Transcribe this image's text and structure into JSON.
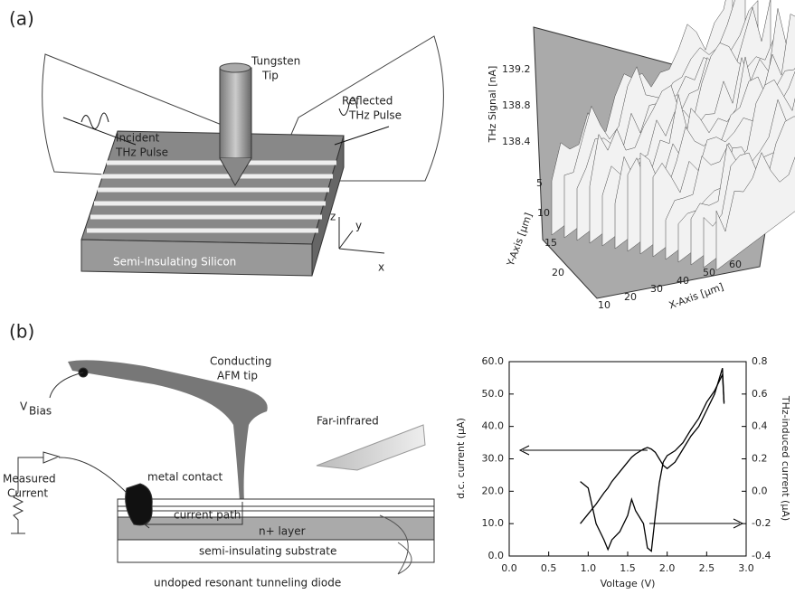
{
  "panel_a": {
    "label": "(a)",
    "diagram": {
      "tip": [
        "Tungsten",
        "Tip"
      ],
      "incident": [
        "Incident",
        "THz Pulse"
      ],
      "reflected": [
        "Reflected",
        "THz Pulse"
      ],
      "substrate": "Semi-Insulating Silicon",
      "axes": [
        "z",
        "y",
        "x"
      ]
    },
    "surface_plot": {
      "z_label": "THz Signal [nA]",
      "y_label": "Y-Axis [μm]",
      "x_label": "X-Axis [μm]",
      "z_ticks": [
        138.4,
        138.8,
        139.2
      ],
      "y_ticks": [
        5,
        10,
        15,
        20
      ],
      "x_ticks": [
        10,
        20,
        30,
        40,
        50,
        60
      ]
    }
  },
  "panel_b": {
    "label": "(b)",
    "diagram": {
      "afm": [
        "Conducting",
        "AFM tip"
      ],
      "vbias": [
        "V",
        "Bias"
      ],
      "far_ir": "Far-infrared",
      "measured": [
        "Measured",
        "Current"
      ],
      "contact": "metal contact",
      "path": "current path",
      "nlayer": "n+ layer",
      "substrate": "semi-insulating substrate",
      "diode": "undoped resonant tunneling diode"
    }
  },
  "chart_data": {
    "type": "line",
    "x_label": "Voltage (V)",
    "y_label": "d.c. current (μA)",
    "y2_label": "THz-induced current (μA)",
    "x": [
      0.9,
      1.0,
      1.1,
      1.2,
      1.25,
      1.3,
      1.4,
      1.5,
      1.55,
      1.6,
      1.7,
      1.75,
      1.8,
      1.85,
      1.9,
      1.95,
      2.0,
      2.1,
      2.2,
      2.3,
      2.4,
      2.5,
      2.6,
      2.7,
      2.72
    ],
    "series": [
      {
        "color": "#000000",
        "values": [
          10,
          13,
          16,
          19.5,
          21,
          23,
          26,
          29,
          30.5,
          31.5,
          33,
          33.5,
          33,
          32,
          30,
          28,
          27,
          29,
          33,
          37,
          40,
          45,
          50,
          58,
          47
        ]
      },
      {
        "color": "#000000",
        "axis": "y2",
        "values": [
          0.06,
          0.02,
          -0.2,
          -0.3,
          -0.36,
          -0.3,
          -0.25,
          -0.15,
          -0.05,
          -0.12,
          -0.2,
          -0.35,
          -0.37,
          -0.15,
          0.05,
          0.18,
          0.22,
          0.25,
          0.3,
          0.38,
          0.45,
          0.55,
          0.62,
          0.72,
          0.55
        ]
      }
    ],
    "xlim": [
      0,
      3
    ],
    "xticks": [
      {
        "value": 0,
        "label": "0.0"
      },
      {
        "value": 0.5,
        "label": "0.5"
      },
      {
        "value": 1,
        "label": "1.0"
      },
      {
        "value": 1.5,
        "label": "1.5"
      },
      {
        "value": 2,
        "label": "2.0"
      },
      {
        "value": 2.5,
        "label": "2.5"
      },
      {
        "value": 3,
        "label": "3.0"
      }
    ],
    "ylim": [
      0,
      60
    ],
    "yticks": [
      {
        "value": 0,
        "label": "0.0"
      },
      {
        "value": 10,
        "label": "10.0"
      },
      {
        "value": 20,
        "label": "20.0"
      },
      {
        "value": 30,
        "label": "30.0"
      },
      {
        "value": 40,
        "label": "40.0"
      },
      {
        "value": 50,
        "label": "50.0"
      },
      {
        "value": 60,
        "label": "60.0"
      }
    ],
    "y2lim": [
      -0.4,
      0.8
    ],
    "y2ticks": [
      -0.4,
      -0.2,
      {
        "value": 0,
        "label": "0.0"
      },
      0.2,
      0.4,
      0.6,
      0.8
    ]
  }
}
